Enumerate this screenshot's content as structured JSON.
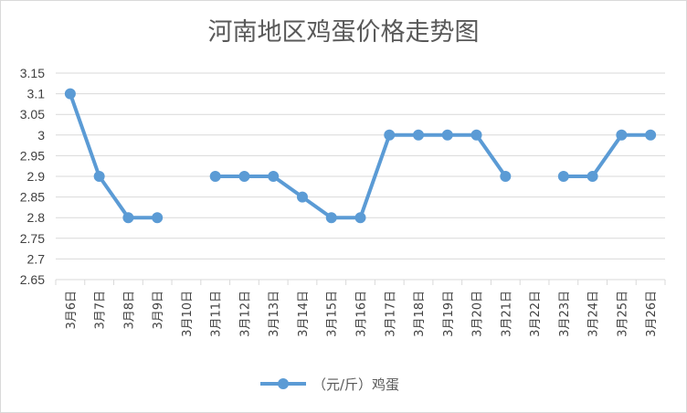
{
  "chart_data": {
    "type": "line",
    "title": "河南地区鸡蛋价格走势图",
    "categories": [
      "3月6日",
      "3月7日",
      "3月8日",
      "3月9日",
      "3月10日",
      "3月11日",
      "3月12日",
      "3月13日",
      "3月14日",
      "3月15日",
      "3月16日",
      "3月17日",
      "3月18日",
      "3月19日",
      "3月20日",
      "3月21日",
      "3月22日",
      "3月23日",
      "3月24日",
      "3月25日",
      "3月26日"
    ],
    "series": [
      {
        "name": "（元/斤）鸡蛋",
        "values": [
          3.1,
          2.9,
          2.8,
          2.8,
          null,
          2.9,
          2.9,
          2.9,
          2.85,
          2.8,
          2.8,
          3.0,
          3.0,
          3.0,
          3.0,
          2.9,
          null,
          2.9,
          2.9,
          3.0,
          3.0
        ],
        "color": "#5b9bd5"
      }
    ],
    "y_ticks": [
      "3.15",
      "3.1",
      "3.05",
      "3",
      "2.95",
      "2.9",
      "2.85",
      "2.8",
      "2.75",
      "2.7",
      "2.65"
    ],
    "ylim": [
      2.65,
      3.15
    ],
    "grid": "horizontal",
    "legend_position": "bottom",
    "xlabel": "",
    "ylabel": ""
  }
}
